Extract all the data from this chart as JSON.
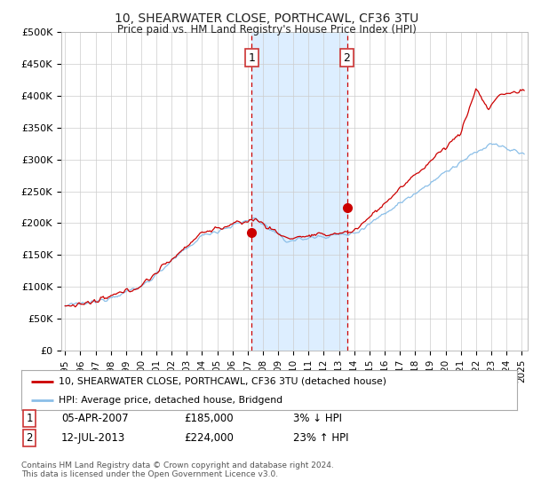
{
  "title": "10, SHEARWATER CLOSE, PORTHCAWL, CF36 3TU",
  "subtitle": "Price paid vs. HM Land Registry's House Price Index (HPI)",
  "legend_line1": "10, SHEARWATER CLOSE, PORTHCAWL, CF36 3TU (detached house)",
  "legend_line2": "HPI: Average price, detached house, Bridgend",
  "annotation1_date": "05-APR-2007",
  "annotation1_price": "£185,000",
  "annotation1_hpi": "3% ↓ HPI",
  "annotation2_date": "12-JUL-2013",
  "annotation2_price": "£224,000",
  "annotation2_hpi": "23% ↑ HPI",
  "footnote": "Contains HM Land Registry data © Crown copyright and database right 2024.\nThis data is licensed under the Open Government Licence v3.0.",
  "ylim": [
    0,
    500000
  ],
  "yticks": [
    0,
    50000,
    100000,
    150000,
    200000,
    250000,
    300000,
    350000,
    400000,
    450000,
    500000
  ],
  "ytick_labels": [
    "£0",
    "£50K",
    "£100K",
    "£150K",
    "£200K",
    "£250K",
    "£300K",
    "£350K",
    "£400K",
    "£450K",
    "£500K"
  ],
  "shade_start": 2007.27,
  "shade_end": 2013.52,
  "vline1_x": 2007.27,
  "vline2_x": 2013.52,
  "sale1_x": 2007.27,
  "sale1_y": 185000,
  "sale2_x": 2013.52,
  "sale2_y": 224000,
  "hpi_color": "#8bbfe8",
  "price_color": "#cc0000",
  "shade_color": "#ddeeff",
  "background_color": "#ffffff",
  "grid_color": "#cccccc",
  "xmin": 1994.75,
  "xmax": 2025.4
}
